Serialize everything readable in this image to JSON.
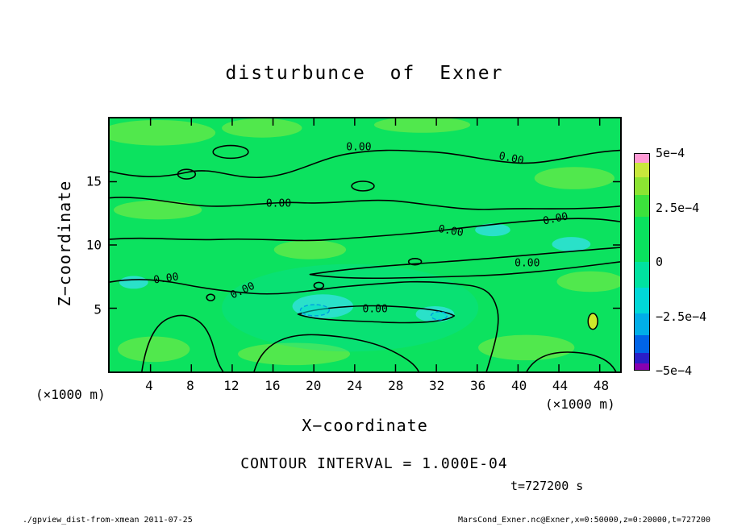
{
  "title": "disturbunce of Exner",
  "chart_data": {
    "type": "heatmap",
    "subtype": "filled-contour",
    "title": "disturbunce of Exner",
    "xlabel": "X−coordinate",
    "ylabel": "Z−coordinate",
    "x_unit_label": "(×1000 m)",
    "y_unit_label": "(×1000 m)",
    "xlim": [
      0,
      50
    ],
    "ylim": [
      0,
      20
    ],
    "x_ticks": [
      4,
      8,
      12,
      16,
      20,
      24,
      28,
      32,
      36,
      40,
      44,
      48
    ],
    "y_ticks": [
      5,
      10,
      15
    ],
    "contour_interval_text": "CONTOUR INTERVAL = 1.000E-04",
    "time_label": "t=727200 s",
    "contour_label_text": "0.00",
    "contour_labels": [
      {
        "x_pct": 48.8,
        "y_pct": 11.6,
        "rot": 0
      },
      {
        "x_pct": 78.6,
        "y_pct": 16.0,
        "rot": 12
      },
      {
        "x_pct": 33.1,
        "y_pct": 33.6,
        "rot": 0
      },
      {
        "x_pct": 66.9,
        "y_pct": 44.7,
        "rot": 10
      },
      {
        "x_pct": 87.3,
        "y_pct": 39.9,
        "rot": -12
      },
      {
        "x_pct": 81.8,
        "y_pct": 57.2,
        "rot": 0
      },
      {
        "x_pct": 11.1,
        "y_pct": 63.5,
        "rot": -8
      },
      {
        "x_pct": 26.1,
        "y_pct": 68.2,
        "rot": -25
      },
      {
        "x_pct": 52.0,
        "y_pct": 75.5,
        "rot": 0
      }
    ],
    "colorbar": {
      "range": [
        -0.0005,
        0.0005
      ],
      "tick_labels": [
        "5e−4",
        "2.5e−4",
        "0",
        "−2.5e−4",
        "−5e−4"
      ],
      "segments": [
        {
          "color": "#ff9ad5",
          "pct": 4
        },
        {
          "color": "#c8e83c",
          "pct": 7
        },
        {
          "color": "#8ce432",
          "pct": 8
        },
        {
          "color": "#3ce23c",
          "pct": 10
        },
        {
          "color": "#0ae25e",
          "pct": 21
        },
        {
          "color": "#00e2a0",
          "pct": 12
        },
        {
          "color": "#00d8d8",
          "pct": 12
        },
        {
          "color": "#00aee8",
          "pct": 10
        },
        {
          "color": "#0064e8",
          "pct": 8
        },
        {
          "color": "#2a1ec8",
          "pct": 5
        },
        {
          "color": "#8800b0",
          "pct": 3
        }
      ]
    },
    "field_note": "Exner disturbance field is near zero (green) across the domain; meandering zero contours labeled 0.00 run quasi-horizontally; weak negative (cyan) patches with small dashed closed contours occur in the lower middle; one small positive (yellow-green) closed contour near x=47, z=4."
  },
  "footer": {
    "left": "./gpview_dist-from-xmean  2011-07-25",
    "right": "MarsCond_Exner.nc@Exner,x=0:50000,z=0:20000,t=727200"
  }
}
